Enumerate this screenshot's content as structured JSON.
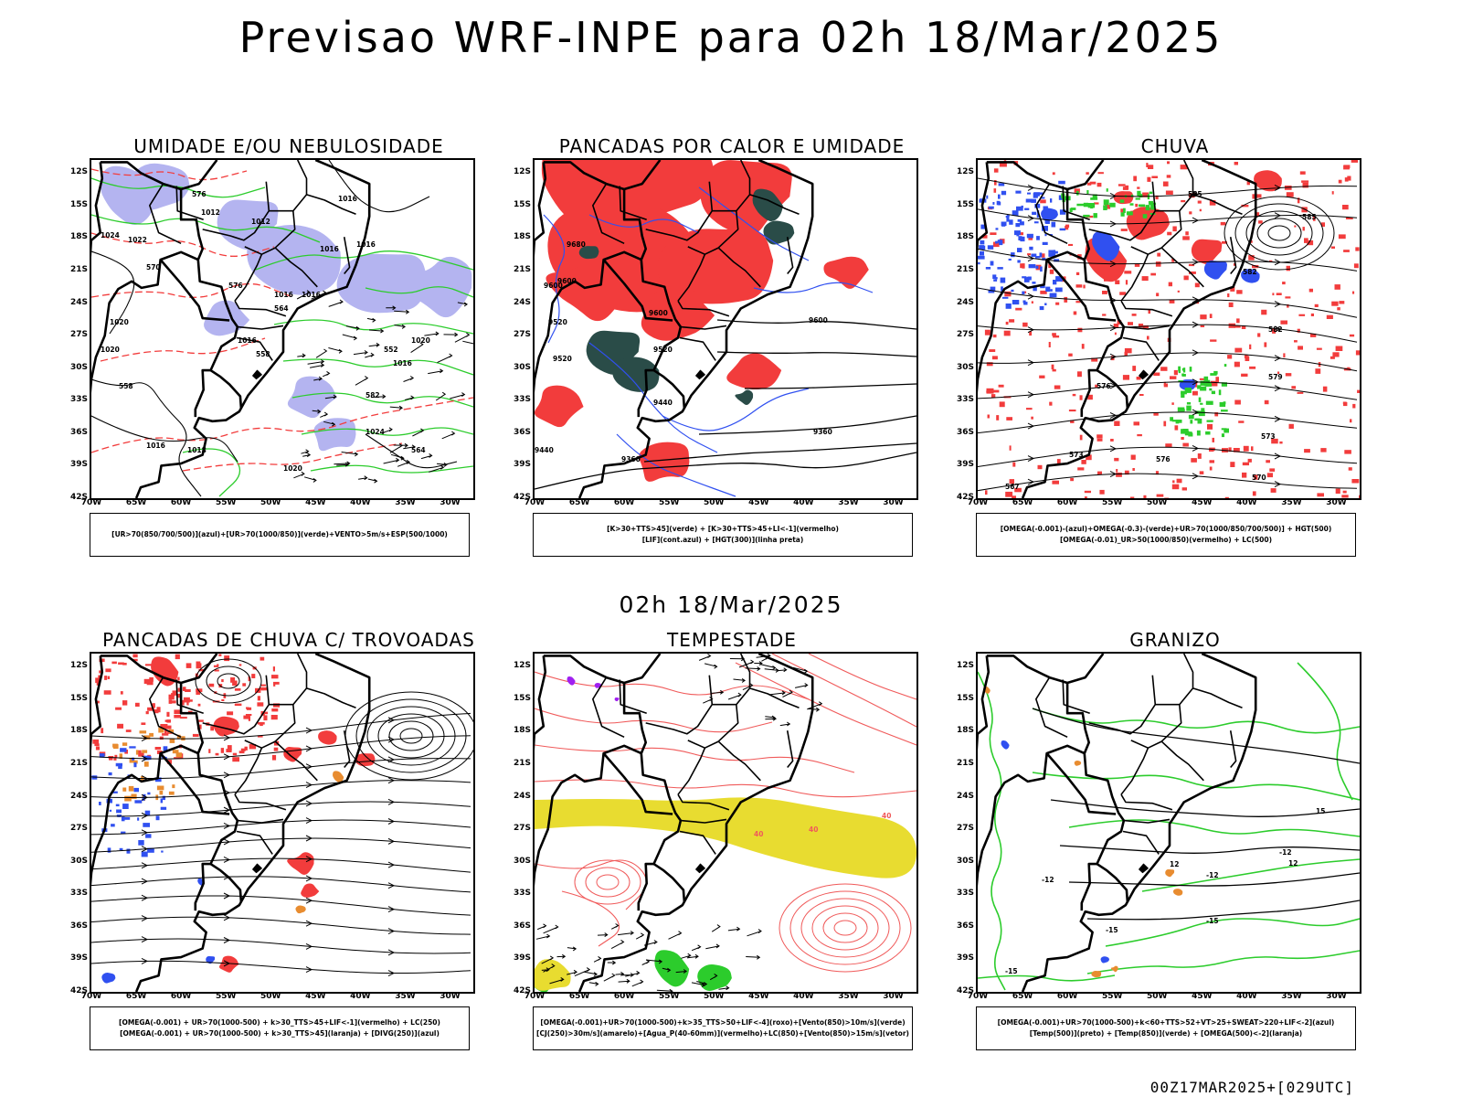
{
  "page": {
    "title": "Previsao WRF-INPE  para 02h 18/Mar/2025",
    "subtitle": "02h 18/Mar/2025",
    "run_label": "00Z17MAR2025+[029UTC]"
  },
  "axes": {
    "lat_labels": [
      "12S",
      "15S",
      "18S",
      "21S",
      "24S",
      "27S",
      "30S",
      "33S",
      "36S",
      "39S",
      "42S"
    ],
    "lon_labels": [
      "70W",
      "65W",
      "60W",
      "55W",
      "50W",
      "45W",
      "40W",
      "35W",
      "30W"
    ]
  },
  "colors": {
    "red": "#f23c3c",
    "green": "#2ccc2c",
    "blue": "#3050f0",
    "lavender": "#b4b4f0",
    "dark_teal": "#2a4c48",
    "yellow": "#e8dc30",
    "orange": "#e88c30",
    "purple": "#a020f0",
    "salmon": "#f05a5a",
    "black": "#000000"
  },
  "panels": [
    {
      "id": "umidade",
      "title": "UMIDADE E/OU NEBULOSIDADE",
      "legend": [
        "[UR>70(850/700/500)](azul)+[UR>70(1000/850)](verde)+VENTO>5m/s+ESP(500/1000)"
      ],
      "contour_labels": [
        "1016",
        "1012",
        "1012",
        "1024",
        "1022",
        "1016",
        "1016",
        "1016",
        "1020",
        "1016",
        "1020",
        "1016",
        "1016",
        "1020",
        "1016",
        "1018",
        "1020",
        "1024",
        "576",
        "570",
        "576",
        "564",
        "558",
        "552",
        "582",
        "558",
        "564"
      ]
    },
    {
      "id": "pancadas_calor",
      "title": "PANCADAS POR CALOR E UMIDADE",
      "legend": [
        "[K>30+TTS>45](verde) + [K>30+TTS>45+LI<-1](vermelho)",
        "[LIF](cont.azul) + [HGT(300)](linha preta)"
      ],
      "contour_labels": [
        "9680",
        "9600",
        "9600",
        "9520",
        "9520",
        "9600",
        "9520",
        "9440",
        "9360",
        "9440",
        "9360",
        "9600"
      ]
    },
    {
      "id": "chuva",
      "title": "CHUVA",
      "legend": [
        "[OMEGA(-0.001)-(azul)+OMEGA(-0.3)-(verde)+UR>70(1000/850/700/500)] + HGT(500)",
        "[OMEGA(-0.01)_UR>50(1000/850)(vermelho) + LC(500)"
      ],
      "contour_labels": [
        "585",
        "585",
        "582",
        "582",
        "579",
        "576",
        "573",
        "573",
        "570",
        "567",
        "576"
      ]
    },
    {
      "id": "pancadas_trovoadas",
      "title": "PANCADAS DE CHUVA C/ TROVOADAS",
      "legend": [
        "[OMEGA(-0.001) + UR>70(1000-500) + k>30_TTS>45+LIF<-1](vermelho) + LC(250)",
        "[OMEGA(-0.001) + UR>70(1000-500) + k>30_TTS>45](laranja) + [DIVG(250)](azul)"
      ],
      "contour_labels": []
    },
    {
      "id": "tempestade",
      "title": "TEMPESTADE",
      "legend": [
        "[OMEGA(-0.001)+UR>70(1000-500)+k>35_TTS>50+LIF<-4](roxo)+[Vento(850)>10m/s](verde)",
        "[CJ(250)>30m/s](amarelo)+[Agua_P(40-60mm)](vermelho)+LC(850)+[Vento(850)>15m/s](vetor)"
      ],
      "contour_labels": [
        "40",
        "40",
        "40"
      ]
    },
    {
      "id": "granizo",
      "title": "GRANIZO",
      "legend": [
        "[OMEGA(-0.001)+UR>70(1000-500)+k<60+TTS>52+VT>25+SWEAT>220+LIF<-2](azul)",
        "[Temp(500)](preto) + [Temp(850)](verde) + [OMEGA(500)<-2](laranja)"
      ],
      "contour_labels": [
        "-12",
        "-12",
        "-12",
        "-15",
        "-15",
        "-15",
        "15",
        "12",
        "12"
      ]
    }
  ]
}
